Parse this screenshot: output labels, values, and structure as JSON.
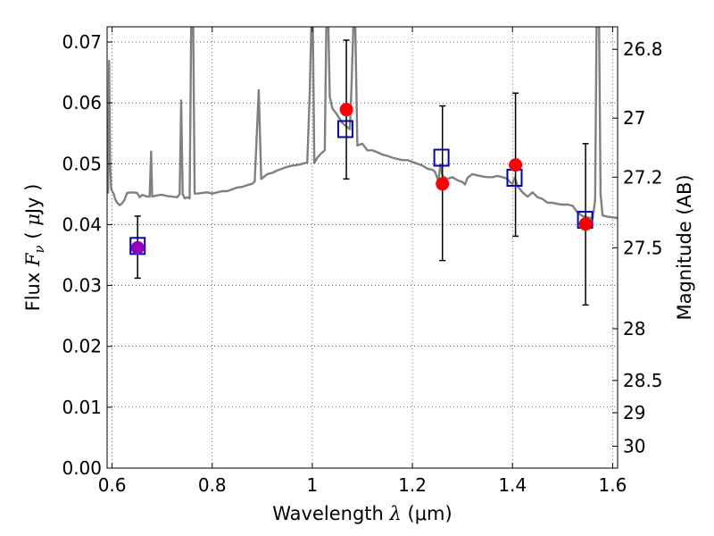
{
  "chart_data": {
    "type": "scatter",
    "title": "",
    "xlabel": "Wavelength  λ (μm)",
    "ylabel": "Flux  F_ν  ( μJy )",
    "ylabel_parts": {
      "prefix": "Flux  ",
      "symbol": "F",
      "sub": "ν",
      "paren_open": " ( ",
      "mu": "μ",
      "unit": "Jy",
      "paren_close": " )"
    },
    "xlabel_parts": {
      "text": "Wavelength  ",
      "lambda": "λ",
      "unit": " (μm)"
    },
    "y2label": "Magnitude (AB)",
    "xlim": [
      0.59,
      1.61
    ],
    "ylim": [
      0.0,
      0.0725
    ],
    "grid": true,
    "x_ticks": [
      0.6,
      0.8,
      1.0,
      1.2,
      1.4,
      1.6
    ],
    "x_tick_labels": [
      "0.6",
      "0.8",
      "1",
      "1.2",
      "1.4",
      "1.6"
    ],
    "y_ticks": [
      0.0,
      0.01,
      0.02,
      0.03,
      0.04,
      0.05,
      0.06,
      0.07
    ],
    "y_tick_labels": [
      "0.00",
      "0.01",
      "0.02",
      "0.03",
      "0.04",
      "0.05",
      "0.06",
      "0.07"
    ],
    "y2_ticks": [
      {
        "label": "26.8",
        "flux": 0.0688
      },
      {
        "label": "27",
        "flux": 0.0575
      },
      {
        "label": "27.2",
        "flux": 0.0478
      },
      {
        "label": "27.5",
        "flux": 0.0362
      },
      {
        "label": "28",
        "flux": 0.0229
      },
      {
        "label": "28.5",
        "flux": 0.0144
      },
      {
        "label": "29",
        "flux": 0.0091
      },
      {
        "label": "30",
        "flux": 0.0036
      }
    ],
    "series": [
      {
        "kind": "model_spectrum",
        "color": "#808080",
        "points": [
          [
            0.592,
            0.0451
          ],
          [
            0.594,
            0.0669
          ],
          [
            0.596,
            0.05
          ],
          [
            0.598,
            0.046
          ],
          [
            0.6,
            0.0455
          ],
          [
            0.603,
            0.0451
          ],
          [
            0.606,
            0.0442
          ],
          [
            0.61,
            0.0436
          ],
          [
            0.615,
            0.0432
          ],
          [
            0.62,
            0.0435
          ],
          [
            0.625,
            0.0441
          ],
          [
            0.628,
            0.0448
          ],
          [
            0.63,
            0.0452
          ],
          [
            0.64,
            0.0453
          ],
          [
            0.65,
            0.0452
          ],
          [
            0.655,
            0.0445
          ],
          [
            0.66,
            0.0449
          ],
          [
            0.67,
            0.0446
          ],
          [
            0.675,
            0.0446
          ],
          [
            0.678,
            0.052
          ],
          [
            0.68,
            0.0446
          ],
          [
            0.69,
            0.0448
          ],
          [
            0.7,
            0.0449
          ],
          [
            0.71,
            0.0447
          ],
          [
            0.72,
            0.0446
          ],
          [
            0.73,
            0.0445
          ],
          [
            0.735,
            0.045
          ],
          [
            0.738,
            0.0604
          ],
          [
            0.741,
            0.045
          ],
          [
            0.745,
            0.0443
          ],
          [
            0.75,
            0.0445
          ],
          [
            0.755,
            0.0443
          ],
          [
            0.758,
            0.0725
          ],
          [
            0.762,
            0.0725
          ],
          [
            0.765,
            0.0451
          ],
          [
            0.77,
            0.0451
          ],
          [
            0.78,
            0.0452
          ],
          [
            0.79,
            0.0453
          ],
          [
            0.8,
            0.0451
          ],
          [
            0.81,
            0.0453
          ],
          [
            0.82,
            0.0455
          ],
          [
            0.83,
            0.0455
          ],
          [
            0.84,
            0.0458
          ],
          [
            0.85,
            0.0461
          ],
          [
            0.86,
            0.0462
          ],
          [
            0.87,
            0.0465
          ],
          [
            0.88,
            0.0467
          ],
          [
            0.885,
            0.0471
          ],
          [
            0.893,
            0.0621
          ],
          [
            0.898,
            0.0475
          ],
          [
            0.91,
            0.0483
          ],
          [
            0.92,
            0.0485
          ],
          [
            0.93,
            0.0489
          ],
          [
            0.94,
            0.0492
          ],
          [
            0.95,
            0.0495
          ],
          [
            0.96,
            0.0497
          ],
          [
            0.97,
            0.0498
          ],
          [
            0.98,
            0.05
          ],
          [
            0.99,
            0.0502
          ],
          [
            0.995,
            0.062
          ],
          [
            0.998,
            0.0725
          ],
          [
            1.001,
            0.0725
          ],
          [
            1.004,
            0.0501
          ],
          [
            1.01,
            0.051
          ],
          [
            1.02,
            0.0519
          ],
          [
            1.025,
            0.0522
          ],
          [
            1.028,
            0.0725
          ],
          [
            1.032,
            0.0725
          ],
          [
            1.035,
            0.061
          ],
          [
            1.04,
            0.0591
          ],
          [
            1.05,
            0.058
          ],
          [
            1.06,
            0.0567
          ],
          [
            1.07,
            0.056
          ],
          [
            1.075,
            0.0557
          ],
          [
            1.078,
            0.062
          ],
          [
            1.082,
            0.0725
          ],
          [
            1.086,
            0.0725
          ],
          [
            1.09,
            0.053
          ],
          [
            1.1,
            0.0533
          ],
          [
            1.11,
            0.0522
          ],
          [
            1.12,
            0.0522
          ],
          [
            1.13,
            0.0519
          ],
          [
            1.14,
            0.0515
          ],
          [
            1.15,
            0.0513
          ],
          [
            1.16,
            0.051
          ],
          [
            1.17,
            0.0508
          ],
          [
            1.18,
            0.0506
          ],
          [
            1.19,
            0.0506
          ],
          [
            1.2,
            0.0503
          ],
          [
            1.21,
            0.05
          ],
          [
            1.22,
            0.0497
          ],
          [
            1.23,
            0.0492
          ],
          [
            1.24,
            0.049
          ],
          [
            1.245,
            0.0487
          ],
          [
            1.252,
            0.0472
          ],
          [
            1.256,
            0.0499
          ],
          [
            1.26,
            0.048
          ],
          [
            1.27,
            0.0475
          ],
          [
            1.28,
            0.0478
          ],
          [
            1.29,
            0.0473
          ],
          [
            1.3,
            0.047
          ],
          [
            1.305,
            0.0466
          ],
          [
            1.31,
            0.0477
          ],
          [
            1.32,
            0.0483
          ],
          [
            1.33,
            0.0481
          ],
          [
            1.34,
            0.0479
          ],
          [
            1.35,
            0.0478
          ],
          [
            1.36,
            0.0478
          ],
          [
            1.37,
            0.048
          ],
          [
            1.38,
            0.0478
          ],
          [
            1.39,
            0.0475
          ],
          [
            1.395,
            0.047
          ],
          [
            1.4,
            0.0467
          ],
          [
            1.405,
            0.0478
          ],
          [
            1.41,
            0.0463
          ],
          [
            1.42,
            0.0453
          ],
          [
            1.43,
            0.0446
          ],
          [
            1.44,
            0.0453
          ],
          [
            1.45,
            0.0445
          ],
          [
            1.46,
            0.0442
          ],
          [
            1.47,
            0.0436
          ],
          [
            1.48,
            0.0436
          ],
          [
            1.49,
            0.0434
          ],
          [
            1.5,
            0.0433
          ],
          [
            1.51,
            0.0433
          ],
          [
            1.52,
            0.0431
          ],
          [
            1.53,
            0.042
          ],
          [
            1.54,
            0.0414
          ],
          [
            1.55,
            0.0412
          ],
          [
            1.56,
            0.041
          ],
          [
            1.565,
            0.044
          ],
          [
            1.568,
            0.0725
          ],
          [
            1.573,
            0.0725
          ],
          [
            1.576,
            0.045
          ],
          [
            1.58,
            0.0415
          ],
          [
            1.59,
            0.0413
          ],
          [
            1.6,
            0.0412
          ],
          [
            1.61,
            0.0411
          ]
        ]
      },
      {
        "kind": "model_photometry",
        "marker": "open-square",
        "color": "#0000bb",
        "x": [
          0.651,
          1.066,
          1.258,
          1.404,
          1.545
        ],
        "y": [
          0.0365,
          0.0557,
          0.051,
          0.0477,
          0.0408
        ]
      },
      {
        "kind": "observed_photometry",
        "marker": "filled-circle",
        "color": "#ff0000",
        "x": [
          0.651,
          1.068,
          1.26,
          1.406,
          1.546
        ],
        "y": [
          0.0362,
          0.0589,
          0.0467,
          0.0498,
          0.0401
        ],
        "err_low": [
          0.0312,
          0.0475,
          0.0341,
          0.0381,
          0.0268
        ],
        "err_high": [
          0.0414,
          0.0703,
          0.0595,
          0.0616,
          0.0533
        ],
        "first_point_color": "#9900bb"
      }
    ]
  }
}
